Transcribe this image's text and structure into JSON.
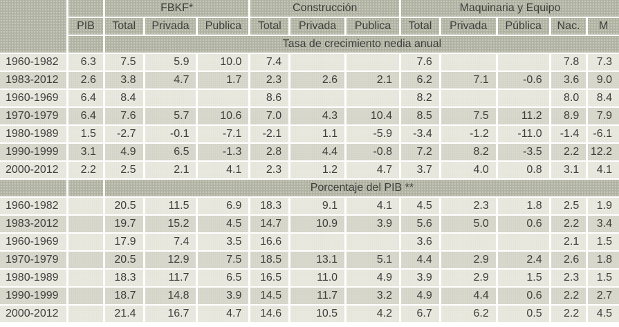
{
  "chart_data": {
    "type": "table",
    "groups": [
      {
        "label": "FBKF*",
        "span": 3
      },
      {
        "label": "Construcción",
        "span": 3
      },
      {
        "label": "Maquinaria y Equipo",
        "span": 5
      }
    ],
    "columns": [
      "PIB",
      "Total",
      "Privada",
      "Publica",
      "Total",
      "Privada",
      "Publica",
      "Total",
      "Privada",
      "Pública",
      "Nac.",
      "M"
    ],
    "sections": [
      {
        "title": "Tasa de crecimiento nedia anual",
        "rows": [
          {
            "period": "1960-1982",
            "values": [
              "6.3",
              "7.5",
              "5.9",
              "10.0",
              "7.4",
              "",
              "",
              "7.6",
              "",
              "",
              "7.8",
              "7.3"
            ]
          },
          {
            "period": "1983-2012",
            "values": [
              "2.6",
              "3.8",
              "4.7",
              "1.7",
              "2.3",
              "2.6",
              "2.1",
              "6.2",
              "7.1",
              "-0.6",
              "3.6",
              "9.0"
            ]
          },
          {
            "period": "1960-1969",
            "values": [
              "6.4",
              "8.4",
              "",
              "",
              "8.6",
              "",
              "",
              "8.2",
              "",
              "",
              "8.0",
              "8.4"
            ]
          },
          {
            "period": "1970-1979",
            "values": [
              "6.4",
              "7.6",
              "5.7",
              "10.6",
              "7.0",
              "4.3",
              "10.4",
              "8.5",
              "7.5",
              "11.2",
              "8.9",
              "7.9"
            ]
          },
          {
            "period": "1980-1989",
            "values": [
              "1.5",
              "-2.7",
              "-0.1",
              "-7.1",
              "-2.1",
              "1.1",
              "-5.9",
              "-3.4",
              "-1.2",
              "-11.0",
              "-1.4",
              "-6.1"
            ]
          },
          {
            "period": "1990-1999",
            "values": [
              "3.1",
              "4.9",
              "6.5",
              "-1.3",
              "2.8",
              "4.4",
              "-0.8",
              "7.2",
              "8.2",
              "-3.5",
              "2.2",
              "12.2"
            ]
          },
          {
            "period": "2000-2012",
            "values": [
              "2.2",
              "2.5",
              "2.1",
              "4.1",
              "2.3",
              "1.2",
              "4.7",
              "3.7",
              "4.0",
              "0.8",
              "3.1",
              "4.1"
            ]
          }
        ]
      },
      {
        "title": "Porcentaje del PIB **",
        "rows": [
          {
            "period": "1960-1982",
            "values": [
              "",
              "20.5",
              "11.5",
              "6.9",
              "18.3",
              "9.1",
              "4.1",
              "4.5",
              "2.3",
              "1.8",
              "2.5",
              "1.9"
            ]
          },
          {
            "period": "1983-2012",
            "values": [
              "",
              "19.7",
              "15.2",
              "4.5",
              "14.7",
              "10.9",
              "3.9",
              "5.6",
              "5.0",
              "0.6",
              "2.2",
              "3.4"
            ]
          },
          {
            "period": "1960-1969",
            "values": [
              "",
              "17.9",
              "7.4",
              "3.5",
              "16.6",
              "",
              "",
              "3.6",
              "",
              "",
              "2.1",
              "1.5"
            ]
          },
          {
            "period": "1970-1979",
            "values": [
              "",
              "20.5",
              "12.9",
              "7.5",
              "18.5",
              "13.1",
              "5.1",
              "4.4",
              "2.9",
              "2.4",
              "2.6",
              "1.8"
            ]
          },
          {
            "period": "1980-1989",
            "values": [
              "",
              "18.3",
              "11.7",
              "6.5",
              "16.5",
              "11.0",
              "4.9",
              "3.9",
              "2.9",
              "1.5",
              "2.3",
              "1.5"
            ]
          },
          {
            "period": "1990-1999",
            "values": [
              "",
              "18.7",
              "14.8",
              "3.9",
              "14.5",
              "11.7",
              "3.2",
              "4.9",
              "4.4",
              "0.6",
              "2.2",
              "2.7"
            ]
          },
          {
            "period": "2000-2012",
            "values": [
              "",
              "21.4",
              "16.7",
              "4.7",
              "14.6",
              "10.5",
              "4.2",
              "6.7",
              "6.2",
              "0.5",
              "2.2",
              "4.5"
            ]
          }
        ]
      }
    ],
    "colors": {
      "header_bg": "#b0b2a1",
      "row_light": "#ebebe2",
      "row_dark": "#dbdbd0",
      "grid": "#ffffff",
      "text": "#3e3e3c"
    }
  }
}
